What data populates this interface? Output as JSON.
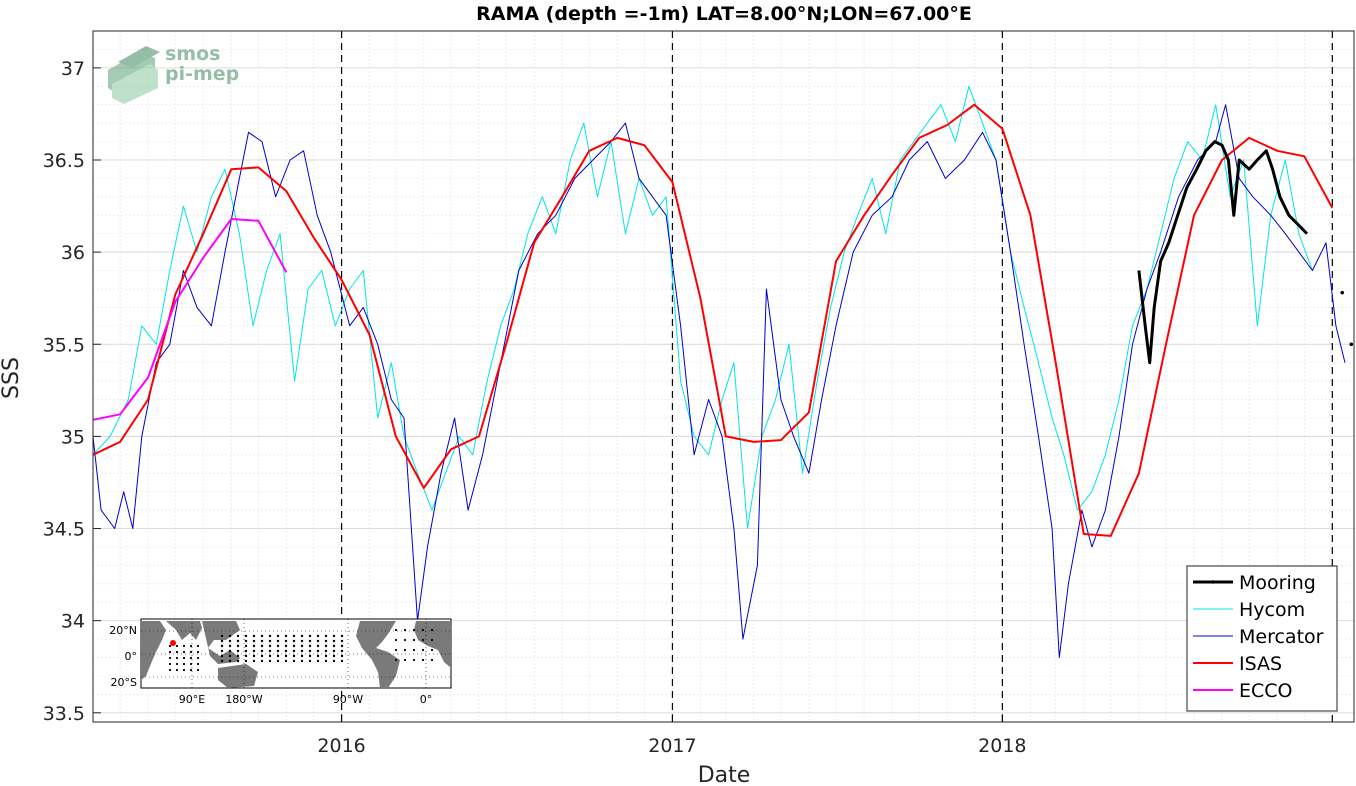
{
  "chart_data": {
    "type": "line",
    "title": "RAMA (depth =-1m) LAT=8.00°N;LON=67.00°E",
    "xlabel": "Date",
    "ylabel": "SSS",
    "xlim": [
      "2015-04-01",
      "2019-01-25"
    ],
    "ylim": [
      33.45,
      37.2
    ],
    "x_ticks": [
      "2016",
      "2017",
      "2018"
    ],
    "y_ticks": [
      "33.5",
      "34",
      "34.5",
      "35",
      "35.5",
      "36",
      "36.5",
      "37"
    ],
    "grid": true,
    "minor_grid": true,
    "year_boundaries": [
      "2016-01-01",
      "2017-01-01",
      "2018-01-01",
      "2019-01-01"
    ],
    "legend_position": "bottom-right",
    "series": [
      {
        "name": "Mooring",
        "color": "#000000",
        "points": [
          [
            "2018-06-01",
            35.9
          ],
          [
            "2018-06-08",
            35.6
          ],
          [
            "2018-06-13",
            35.4
          ],
          [
            "2018-06-18",
            35.7
          ],
          [
            "2018-06-25",
            35.95
          ],
          [
            "2018-07-04",
            36.05
          ],
          [
            "2018-07-14",
            36.2
          ],
          [
            "2018-07-24",
            36.35
          ],
          [
            "2018-08-04",
            36.45
          ],
          [
            "2018-08-14",
            36.55
          ],
          [
            "2018-08-24",
            36.6
          ],
          [
            "2018-09-01",
            36.58
          ],
          [
            "2018-09-08",
            36.5
          ],
          [
            "2018-09-14",
            36.2
          ],
          [
            "2018-09-20",
            36.5
          ],
          [
            "2018-10-01",
            36.45
          ],
          [
            "2018-10-10",
            36.5
          ],
          [
            "2018-10-20",
            36.55
          ],
          [
            "2018-10-27",
            36.45
          ],
          [
            "2018-11-04",
            36.3
          ],
          [
            "2018-11-14",
            36.2
          ],
          [
            "2018-11-24",
            36.15
          ],
          [
            "2018-12-04",
            36.1
          ]
        ]
      },
      {
        "name": "Hycom",
        "color": "#00e5e5",
        "points": [
          [
            "2015-04-01",
            34.9
          ],
          [
            "2015-04-20",
            35.0
          ],
          [
            "2015-05-10",
            35.2
          ],
          [
            "2015-05-25",
            35.6
          ],
          [
            "2015-06-10",
            35.5
          ],
          [
            "2015-06-25",
            35.9
          ],
          [
            "2015-07-10",
            36.25
          ],
          [
            "2015-07-25",
            36.0
          ],
          [
            "2015-08-10",
            36.3
          ],
          [
            "2015-08-25",
            36.45
          ],
          [
            "2015-09-10",
            36.1
          ],
          [
            "2015-09-25",
            35.6
          ],
          [
            "2015-10-10",
            35.9
          ],
          [
            "2015-10-25",
            36.1
          ],
          [
            "2015-11-10",
            35.3
          ],
          [
            "2015-11-25",
            35.8
          ],
          [
            "2015-12-10",
            35.9
          ],
          [
            "2015-12-25",
            35.6
          ],
          [
            "2016-01-10",
            35.8
          ],
          [
            "2016-01-25",
            35.9
          ],
          [
            "2016-02-10",
            35.1
          ],
          [
            "2016-02-25",
            35.4
          ],
          [
            "2016-03-10",
            35.0
          ],
          [
            "2016-03-25",
            34.8
          ],
          [
            "2016-04-10",
            34.6
          ],
          [
            "2016-04-25",
            34.8
          ],
          [
            "2016-05-10",
            35.0
          ],
          [
            "2016-05-25",
            34.9
          ],
          [
            "2016-06-10",
            35.3
          ],
          [
            "2016-06-25",
            35.6
          ],
          [
            "2016-07-10",
            35.8
          ],
          [
            "2016-07-25",
            36.1
          ],
          [
            "2016-08-10",
            36.3
          ],
          [
            "2016-08-25",
            36.1
          ],
          [
            "2016-09-10",
            36.5
          ],
          [
            "2016-09-25",
            36.7
          ],
          [
            "2016-10-10",
            36.3
          ],
          [
            "2016-10-25",
            36.6
          ],
          [
            "2016-11-10",
            36.1
          ],
          [
            "2016-11-25",
            36.4
          ],
          [
            "2016-12-10",
            36.2
          ],
          [
            "2016-12-25",
            36.3
          ],
          [
            "2017-01-10",
            35.3
          ],
          [
            "2017-01-25",
            35.0
          ],
          [
            "2017-02-10",
            34.9
          ],
          [
            "2017-02-25",
            35.2
          ],
          [
            "2017-03-10",
            35.4
          ],
          [
            "2017-03-25",
            34.5
          ],
          [
            "2017-04-10",
            35.0
          ],
          [
            "2017-04-25",
            35.2
          ],
          [
            "2017-05-10",
            35.5
          ],
          [
            "2017-05-25",
            34.8
          ],
          [
            "2017-06-10",
            35.3
          ],
          [
            "2017-06-25",
            35.7
          ],
          [
            "2017-07-10",
            36.0
          ],
          [
            "2017-07-25",
            36.2
          ],
          [
            "2017-08-10",
            36.4
          ],
          [
            "2017-08-25",
            36.1
          ],
          [
            "2017-09-10",
            36.5
          ],
          [
            "2017-09-25",
            36.6
          ],
          [
            "2017-10-10",
            36.7
          ],
          [
            "2017-10-25",
            36.8
          ],
          [
            "2017-11-10",
            36.6
          ],
          [
            "2017-11-25",
            36.9
          ],
          [
            "2017-12-10",
            36.7
          ],
          [
            "2017-12-25",
            36.5
          ],
          [
            "2018-01-10",
            36.0
          ],
          [
            "2018-01-25",
            35.7
          ],
          [
            "2018-02-10",
            35.4
          ],
          [
            "2018-02-25",
            35.1
          ],
          [
            "2018-03-10",
            34.9
          ],
          [
            "2018-03-25",
            34.6
          ],
          [
            "2018-04-10",
            34.7
          ],
          [
            "2018-04-25",
            34.9
          ],
          [
            "2018-05-10",
            35.2
          ],
          [
            "2018-05-25",
            35.6
          ],
          [
            "2018-06-10",
            35.8
          ],
          [
            "2018-06-25",
            36.1
          ],
          [
            "2018-07-10",
            36.4
          ],
          [
            "2018-07-25",
            36.6
          ],
          [
            "2018-08-10",
            36.5
          ],
          [
            "2018-08-25",
            36.8
          ],
          [
            "2018-09-10",
            36.3
          ],
          [
            "2018-09-25",
            36.5
          ],
          [
            "2018-10-10",
            35.6
          ],
          [
            "2018-10-25",
            36.2
          ],
          [
            "2018-11-10",
            36.5
          ],
          [
            "2018-11-25",
            36.1
          ],
          [
            "2018-12-10",
            35.9
          ]
        ]
      },
      {
        "name": "Mercator",
        "color": "#0000cc",
        "points": [
          [
            "2015-04-01",
            35.0
          ],
          [
            "2015-04-10",
            34.6
          ],
          [
            "2015-04-25",
            34.5
          ],
          [
            "2015-05-05",
            34.7
          ],
          [
            "2015-05-15",
            34.5
          ],
          [
            "2015-05-25",
            35.0
          ],
          [
            "2015-06-10",
            35.4
          ],
          [
            "2015-06-25",
            35.5
          ],
          [
            "2015-07-10",
            35.9
          ],
          [
            "2015-07-25",
            35.7
          ],
          [
            "2015-08-10",
            35.6
          ],
          [
            "2015-08-25",
            36.0
          ],
          [
            "2015-09-10",
            36.4
          ],
          [
            "2015-09-20",
            36.65
          ],
          [
            "2015-10-05",
            36.6
          ],
          [
            "2015-10-20",
            36.3
          ],
          [
            "2015-11-05",
            36.5
          ],
          [
            "2015-11-20",
            36.55
          ],
          [
            "2015-12-05",
            36.2
          ],
          [
            "2015-12-20",
            36.0
          ],
          [
            "2016-01-10",
            35.6
          ],
          [
            "2016-01-25",
            35.7
          ],
          [
            "2016-02-10",
            35.5
          ],
          [
            "2016-02-25",
            35.2
          ],
          [
            "2016-03-10",
            35.1
          ],
          [
            "2016-03-25",
            34.0
          ],
          [
            "2016-04-05",
            34.4
          ],
          [
            "2016-04-20",
            34.8
          ],
          [
            "2016-05-05",
            35.1
          ],
          [
            "2016-05-20",
            34.6
          ],
          [
            "2016-06-05",
            34.9
          ],
          [
            "2016-06-25",
            35.4
          ],
          [
            "2016-07-15",
            35.9
          ],
          [
            "2016-08-05",
            36.1
          ],
          [
            "2016-08-25",
            36.2
          ],
          [
            "2016-09-15",
            36.4
          ],
          [
            "2016-10-05",
            36.5
          ],
          [
            "2016-10-25",
            36.6
          ],
          [
            "2016-11-10",
            36.7
          ],
          [
            "2016-11-25",
            36.4
          ],
          [
            "2016-12-10",
            36.3
          ],
          [
            "2016-12-25",
            36.2
          ],
          [
            "2017-01-10",
            35.6
          ],
          [
            "2017-01-25",
            34.9
          ],
          [
            "2017-02-10",
            35.2
          ],
          [
            "2017-02-25",
            35.0
          ],
          [
            "2017-03-10",
            34.5
          ],
          [
            "2017-03-20",
            33.9
          ],
          [
            "2017-04-05",
            34.3
          ],
          [
            "2017-04-15",
            35.8
          ],
          [
            "2017-05-01",
            35.2
          ],
          [
            "2017-05-15",
            35.0
          ],
          [
            "2017-06-01",
            34.8
          ],
          [
            "2017-06-15",
            35.2
          ],
          [
            "2017-07-01",
            35.6
          ],
          [
            "2017-07-20",
            36.0
          ],
          [
            "2017-08-10",
            36.2
          ],
          [
            "2017-09-01",
            36.3
          ],
          [
            "2017-09-20",
            36.5
          ],
          [
            "2017-10-10",
            36.6
          ],
          [
            "2017-10-30",
            36.4
          ],
          [
            "2017-11-20",
            36.5
          ],
          [
            "2017-12-10",
            36.65
          ],
          [
            "2017-12-25",
            36.5
          ],
          [
            "2018-01-10",
            36.0
          ],
          [
            "2018-01-25",
            35.5
          ],
          [
            "2018-02-10",
            35.0
          ],
          [
            "2018-02-25",
            34.5
          ],
          [
            "2018-03-05",
            33.8
          ],
          [
            "2018-03-15",
            34.2
          ],
          [
            "2018-03-30",
            34.6
          ],
          [
            "2018-04-10",
            34.4
          ],
          [
            "2018-04-25",
            34.6
          ],
          [
            "2018-05-10",
            35.0
          ],
          [
            "2018-05-25",
            35.5
          ],
          [
            "2018-06-10",
            35.8
          ],
          [
            "2018-06-25",
            36.0
          ],
          [
            "2018-07-15",
            36.3
          ],
          [
            "2018-08-05",
            36.5
          ],
          [
            "2018-08-25",
            36.6
          ],
          [
            "2018-09-05",
            36.8
          ],
          [
            "2018-09-20",
            36.4
          ],
          [
            "2018-10-05",
            36.3
          ],
          [
            "2018-10-25",
            36.2
          ],
          [
            "2018-11-10",
            36.1
          ],
          [
            "2018-11-25",
            36.0
          ],
          [
            "2018-12-10",
            35.9
          ],
          [
            "2018-12-25",
            36.05
          ],
          [
            "2019-01-05",
            35.6
          ],
          [
            "2019-01-15",
            35.4
          ]
        ]
      },
      {
        "name": "ISAS",
        "color": "#ff0000",
        "points": [
          [
            "2015-04-01",
            34.9
          ],
          [
            "2015-05-01",
            34.97
          ],
          [
            "2015-06-01",
            35.2
          ],
          [
            "2015-07-01",
            35.77
          ],
          [
            "2015-08-01",
            36.1
          ],
          [
            "2015-09-01",
            36.45
          ],
          [
            "2015-10-01",
            36.46
          ],
          [
            "2015-11-01",
            36.33
          ],
          [
            "2015-12-01",
            36.08
          ],
          [
            "2016-01-01",
            35.85
          ],
          [
            "2016-02-01",
            35.55
          ],
          [
            "2016-03-01",
            35.0
          ],
          [
            "2016-04-01",
            34.72
          ],
          [
            "2016-05-01",
            34.93
          ],
          [
            "2016-06-01",
            35.0
          ],
          [
            "2016-07-01",
            35.5
          ],
          [
            "2016-08-01",
            36.05
          ],
          [
            "2016-09-01",
            36.3
          ],
          [
            "2016-10-01",
            36.55
          ],
          [
            "2016-11-01",
            36.62
          ],
          [
            "2016-12-01",
            36.58
          ],
          [
            "2017-01-01",
            36.38
          ],
          [
            "2017-02-01",
            35.75
          ],
          [
            "2017-03-01",
            35.0
          ],
          [
            "2017-04-01",
            34.97
          ],
          [
            "2017-05-01",
            34.98
          ],
          [
            "2017-06-01",
            35.13
          ],
          [
            "2017-07-01",
            35.95
          ],
          [
            "2017-08-01",
            36.2
          ],
          [
            "2017-09-01",
            36.42
          ],
          [
            "2017-10-01",
            36.62
          ],
          [
            "2017-11-01",
            36.69
          ],
          [
            "2017-12-01",
            36.8
          ],
          [
            "2018-01-01",
            36.67
          ],
          [
            "2018-02-01",
            36.2
          ],
          [
            "2018-03-01",
            35.4
          ],
          [
            "2018-04-01",
            34.47
          ],
          [
            "2018-05-01",
            34.46
          ],
          [
            "2018-06-01",
            34.8
          ],
          [
            "2018-07-01",
            35.5
          ],
          [
            "2018-08-01",
            36.2
          ],
          [
            "2018-09-01",
            36.5
          ],
          [
            "2018-10-01",
            36.62
          ],
          [
            "2018-11-01",
            36.55
          ],
          [
            "2018-12-01",
            36.52
          ],
          [
            "2019-01-01",
            36.24
          ]
        ]
      },
      {
        "name": "ECCO",
        "color": "#ff00ff",
        "points": [
          [
            "2015-04-01",
            35.09
          ],
          [
            "2015-05-01",
            35.12
          ],
          [
            "2015-06-01",
            35.32
          ],
          [
            "2015-07-01",
            35.73
          ],
          [
            "2015-08-01",
            35.97
          ],
          [
            "2015-09-01",
            36.18
          ],
          [
            "2015-10-01",
            36.17
          ],
          [
            "2015-11-01",
            35.89
          ]
        ]
      }
    ],
    "isolated_points": [
      [
        "2019-01-12",
        35.78
      ],
      [
        "2019-01-22",
        35.5
      ]
    ],
    "inset_map": {
      "lat_labels": [
        "20°N",
        "0°",
        "20°S"
      ],
      "lon_labels": [
        "90°E",
        "180°W",
        "90°W",
        "0°"
      ]
    }
  },
  "logo": {
    "line1": "smos",
    "line2": "pi-mep"
  }
}
